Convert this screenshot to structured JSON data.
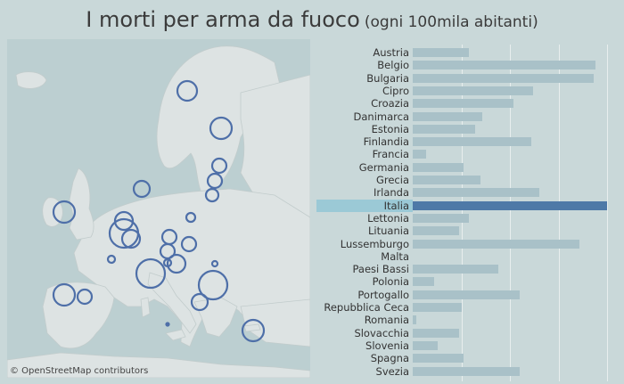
{
  "title": {
    "main": "I morti per arma da fuoco",
    "sub": "(ogni 100mila abitanti)"
  },
  "map": {
    "credit": "© OpenStreetMap contributors"
  },
  "chart_data": {
    "type": "bar",
    "orientation": "horizontal",
    "title": "I morti per arma da fuoco (ogni 100mila abitanti)",
    "categories": [
      "Austria",
      "Belgio",
      "Bulgaria",
      "Cipro",
      "Croazia",
      "Danimarca",
      "Estonia",
      "Finlandia",
      "Francia",
      "Germania",
      "Grecia",
      "Irlanda",
      "Italia",
      "Lettonia",
      "Lituania",
      "Lussemburgo",
      "Malta",
      "Paesi Bassi",
      "Polonia",
      "Portogallo",
      "Repubblica Ceca",
      "Romania",
      "Slovacchia",
      "Slovenia",
      "Spagna",
      "Svezia"
    ],
    "values": [
      0.29,
      0.94,
      0.93,
      0.62,
      0.52,
      0.36,
      0.32,
      0.61,
      0.07,
      0.26,
      0.35,
      0.65,
      1.0,
      0.29,
      0.24,
      0.86,
      0.0,
      0.44,
      0.11,
      0.55,
      0.25,
      0.02,
      0.24,
      0.13,
      0.26,
      0.55
    ],
    "highlight": "Italia",
    "xlim": [
      0,
      1.0
    ],
    "colors": {
      "bar": "#a9c1c8",
      "highlight_bar": "#4e79a7",
      "highlight_band": "#9bc9d6"
    }
  }
}
